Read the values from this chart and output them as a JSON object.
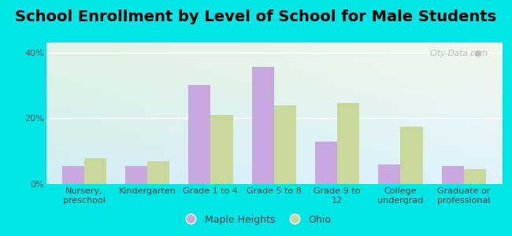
{
  "title": "School Enrollment by Level of School for Male Students",
  "categories": [
    "Nursery,\npreschool",
    "Kindergarten",
    "Grade 1 to 4",
    "Grade 5 to 8",
    "Grade 9 to\n12",
    "College\nundergrad",
    "Graduate or\nprofessional"
  ],
  "maple_heights": [
    5.5,
    5.5,
    30.0,
    35.5,
    13.0,
    6.0,
    5.5
  ],
  "ohio": [
    8.0,
    7.0,
    21.0,
    24.0,
    24.5,
    17.5,
    4.5
  ],
  "maple_color": "#c9a8e0",
  "ohio_color": "#c8d89a",
  "background_color": "#00e5e5",
  "ylabel_ticks": [
    "0%",
    "20%",
    "40%"
  ],
  "yticks": [
    0,
    20,
    40
  ],
  "ylim": [
    0,
    43
  ],
  "bar_width": 0.35,
  "legend_labels": [
    "Maple Heights",
    "Ohio"
  ],
  "title_fontsize": 14,
  "tick_fontsize": 8,
  "legend_fontsize": 9,
  "watermark": "City-Data.com"
}
